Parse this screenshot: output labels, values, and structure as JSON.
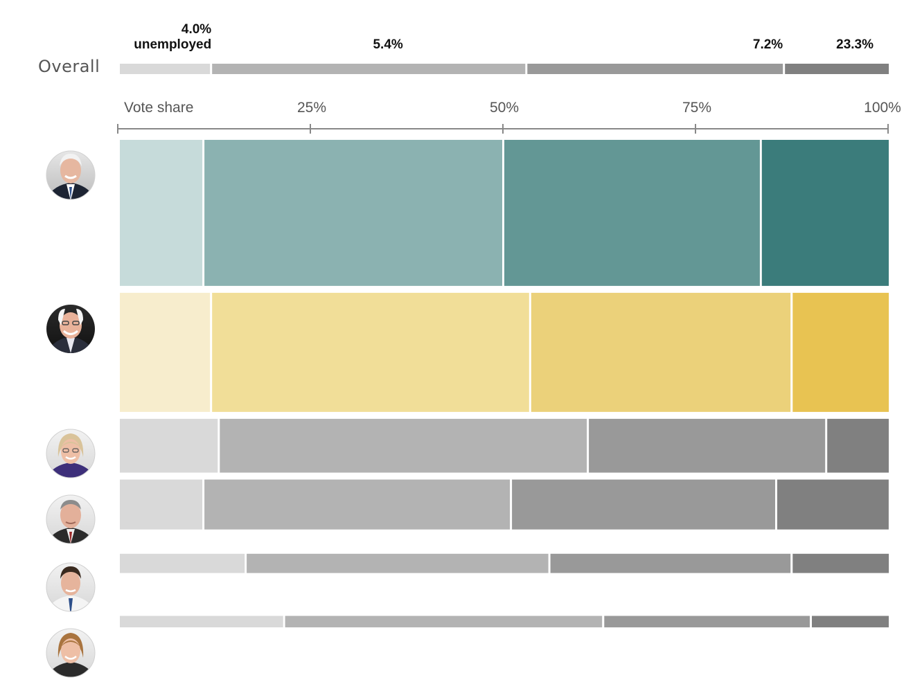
{
  "chart_data": {
    "type": "bar",
    "orientation": "horizontal",
    "stacked": "normalized",
    "overall": {
      "label": "Overall",
      "group_labels": [
        "4.0%\nunemployed",
        "5.4%",
        "7.2%",
        "23.3%"
      ],
      "shares": [
        12,
        41,
        33.5,
        13.5
      ]
    },
    "axis": {
      "label": "Vote share",
      "ticks": [
        0,
        25,
        50,
        75,
        100
      ],
      "tick_labels": [
        "",
        "25%",
        "50%",
        "75%",
        "100%"
      ],
      "range": [
        0,
        100
      ]
    },
    "groups": [
      "4.0% unemployed",
      "5.4%",
      "7.2%",
      "23.3%"
    ],
    "series": [
      {
        "icon": "joe-biden-photo",
        "vote_share": 19,
        "shares": [
          11,
          39,
          33.5,
          16.5
        ],
        "color_family": "teal"
      },
      {
        "icon": "bernie-sanders-photo",
        "vote_share": 15.5,
        "shares": [
          12,
          41.5,
          34,
          12.5
        ],
        "color_family": "yellow"
      },
      {
        "icon": "elizabeth-warren-photo",
        "vote_share": 7,
        "shares": [
          13,
          48,
          31,
          8
        ],
        "color_family": "gray"
      },
      {
        "icon": "michael-bloomberg-photo",
        "vote_share": 6.5,
        "shares": [
          11,
          40,
          34.5,
          14.5
        ],
        "color_family": "gray"
      },
      {
        "icon": "pete-buttigieg-photo",
        "vote_share": 2.5,
        "shares": [
          16.5,
          39.5,
          31.5,
          12.5
        ],
        "color_family": "gray"
      },
      {
        "icon": "amy-klobuchar-photo",
        "vote_share": 1.5,
        "shares": [
          21.5,
          41.5,
          27,
          10
        ],
        "color_family": "gray"
      }
    ],
    "colors": {
      "gray": [
        "#d9d9d9",
        "#b3b3b3",
        "#999999",
        "#808080"
      ],
      "teal": [
        "#c6dbda",
        "#8bb2b1",
        "#639795",
        "#3b7c7b"
      ],
      "yellow": [
        "#f7edcd",
        "#f1de98",
        "#ebd17a",
        "#e8c352"
      ]
    },
    "grid": false
  }
}
